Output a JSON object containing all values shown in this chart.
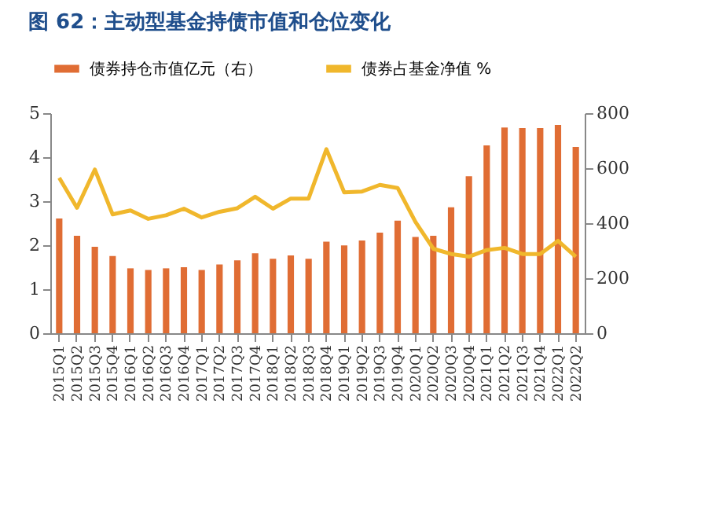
{
  "chart_data": {
    "type": "bar",
    "title": "图 62：主动型基金持债市值和仓位变化",
    "categories": [
      "2015Q1",
      "2015Q2",
      "2015Q3",
      "2015Q4",
      "2016Q1",
      "2016Q2",
      "2016Q3",
      "2016Q4",
      "2017Q1",
      "2017Q2",
      "2017Q3",
      "2017Q4",
      "2018Q1",
      "2018Q2",
      "2018Q3",
      "2018Q4",
      "2019Q1",
      "2019Q2",
      "2019Q3",
      "2019Q4",
      "2020Q1",
      "2020Q2",
      "2020Q3",
      "2020Q4",
      "2021Q1",
      "2021Q2",
      "2021Q3",
      "2021Q4",
      "2022Q1",
      "2022Q2"
    ],
    "series": [
      {
        "name": "债券持仓市值亿元（右）",
        "axis": "y2",
        "color": "#e06d34",
        "values": [
          417,
          354,
          314,
          281,
          236,
          230,
          236,
          240,
          230,
          250,
          265,
          291,
          271,
          283,
          271,
          333,
          319,
          337,
          366,
          409,
          350,
          354,
          458,
          571,
          683,
          748,
          746,
          746,
          757,
          677
        ]
      },
      {
        "name": "债券占基金净值 %",
        "type": "line",
        "axis": "y",
        "color": "#f0b72c",
        "values": [
          3.53,
          2.85,
          3.72,
          2.7,
          2.79,
          2.6,
          2.68,
          2.83,
          2.63,
          2.76,
          2.84,
          3.1,
          2.83,
          3.06,
          3.06,
          4.18,
          3.2,
          3.22,
          3.37,
          3.3,
          2.53,
          1.92,
          1.8,
          1.74,
          1.89,
          1.94,
          1.8,
          1.8,
          2.1,
          1.74
        ]
      }
    ],
    "ylim": [
      0,
      5
    ],
    "yticks": [
      0,
      1,
      2,
      3,
      4,
      5
    ],
    "y2lim": [
      0,
      800
    ],
    "y2ticks": [
      0,
      200,
      400,
      600,
      800
    ],
    "legend": "top"
  }
}
